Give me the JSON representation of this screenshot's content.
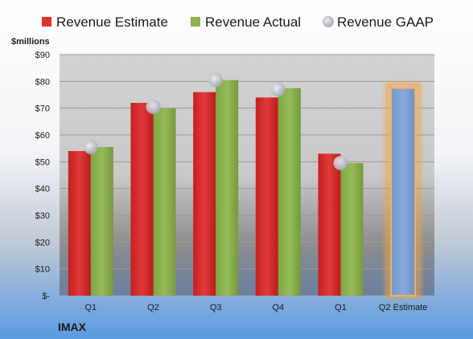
{
  "chart_data": {
    "type": "bar",
    "company": "IMAX",
    "unit_label": "$millions",
    "categories": [
      "Q1",
      "Q2",
      "Q3",
      "Q4",
      "Q1",
      "Q2 Estimate"
    ],
    "series": [
      {
        "name": "Revenue Estimate",
        "color": "#e03030",
        "values": [
          54,
          72,
          76,
          74,
          53,
          null
        ]
      },
      {
        "name": "Revenue Actual",
        "color": "#8cb250",
        "values": [
          55.5,
          70,
          80.5,
          77.5,
          49.5,
          null
        ]
      },
      {
        "name": "Revenue GAAP",
        "color": "#b9bcc6",
        "marker": "circle",
        "values": [
          55.5,
          70.5,
          80.5,
          77,
          49.5,
          null
        ]
      }
    ],
    "estimate_bar": {
      "category": "Q2 Estimate",
      "value": 77.5,
      "color": "#7ba0d0",
      "glow_color": "#f0a040"
    },
    "y_ticks": [
      {
        "value": 0,
        "label": "$-"
      },
      {
        "value": 10,
        "label": "$10"
      },
      {
        "value": 20,
        "label": "$20"
      },
      {
        "value": 30,
        "label": "$30"
      },
      {
        "value": 40,
        "label": "$40"
      },
      {
        "value": 50,
        "label": "$50"
      },
      {
        "value": 60,
        "label": "$60"
      },
      {
        "value": 70,
        "label": "$70"
      },
      {
        "value": 80,
        "label": "$80"
      },
      {
        "value": 90,
        "label": "$90"
      }
    ],
    "ylim": [
      0,
      90
    ],
    "grid": true,
    "legend_position": "top"
  }
}
